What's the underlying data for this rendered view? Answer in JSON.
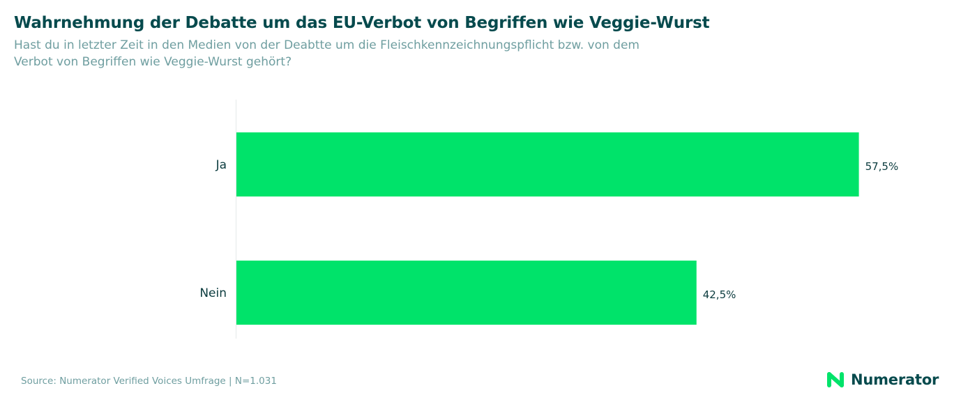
{
  "title": "Wahrnehmung der Debatte um das EU-Verbot von Begriffen wie Veggie-Wurst",
  "subtitle": "Hast du in letzter Zeit in den Medien von der Deabtte um die Fleischkennzeichnungspflicht bzw. von dem\nVerbot von Begriffen wie Veggie-Wurst gehört?",
  "source": "Source: Numerator Verified Voices Umfrage | N=1.031",
  "brand": {
    "name": "Numerator",
    "icon": "numerator-n-icon",
    "colors": {
      "dark": "#064a4d",
      "green": "#00e36a"
    }
  },
  "chart_data": {
    "type": "bar",
    "orientation": "horizontal",
    "categories": [
      "Ja",
      "Nein"
    ],
    "values": [
      57.5,
      42.5
    ],
    "value_labels": [
      "57,5%",
      "42,5%"
    ],
    "unit": "%",
    "xlim": [
      0,
      65
    ],
    "grid": false,
    "legend": "none",
    "bar_color": "#00e36a"
  }
}
